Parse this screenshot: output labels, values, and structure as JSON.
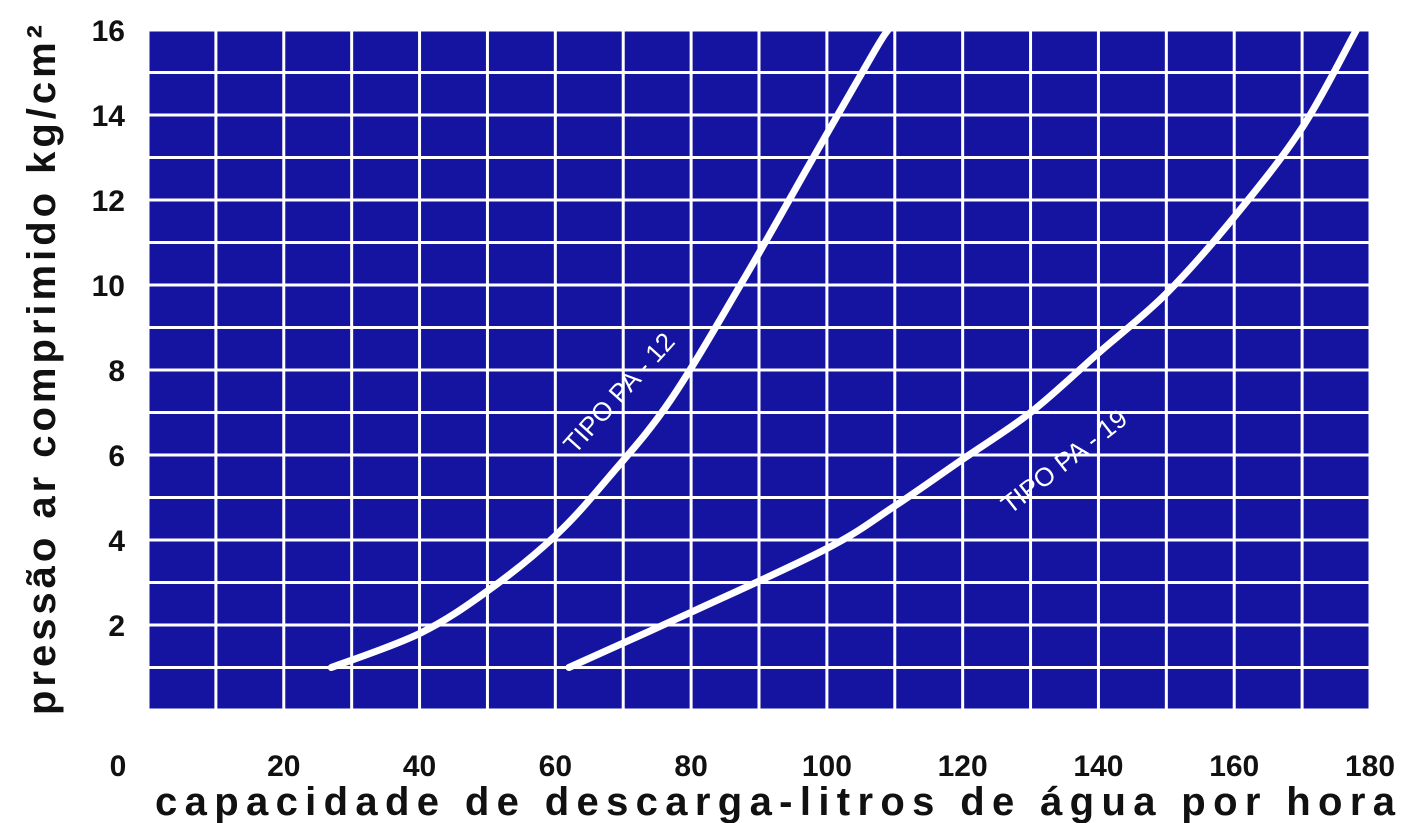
{
  "chart_data": {
    "type": "line",
    "title": "",
    "xlabel": "capacidade de descarga-litros de água por hora",
    "ylabel": "pressão ar comprimido kg/cm²",
    "xlim": [
      0,
      180
    ],
    "ylim": [
      0,
      16
    ],
    "x_ticks": [
      "0",
      "20",
      "40",
      "60",
      "80",
      "100",
      "120",
      "140",
      "160",
      "180"
    ],
    "y_ticks": [
      "2",
      "4",
      "6",
      "8",
      "10",
      "12",
      "14",
      "16"
    ],
    "grid": true,
    "colors": {
      "plot_background": "#1414a0",
      "gridline": "#ffffff",
      "curve": "#ffffff"
    },
    "series": [
      {
        "name": "TIPO PA - 12",
        "x": [
          27,
          40,
          50,
          60,
          68,
          77,
          88,
          98,
          107,
          109
        ],
        "y": [
          1,
          1.8,
          2.8,
          4.1,
          5.5,
          7.3,
          10.2,
          13.0,
          15.5,
          16
        ]
      },
      {
        "name": "TIPO PA - 19",
        "x": [
          62,
          80,
          100,
          110,
          120,
          130,
          140,
          150,
          160,
          170,
          178
        ],
        "y": [
          1,
          2.3,
          3.8,
          4.8,
          5.9,
          7.0,
          8.4,
          9.8,
          11.6,
          13.7,
          16
        ]
      }
    ]
  }
}
